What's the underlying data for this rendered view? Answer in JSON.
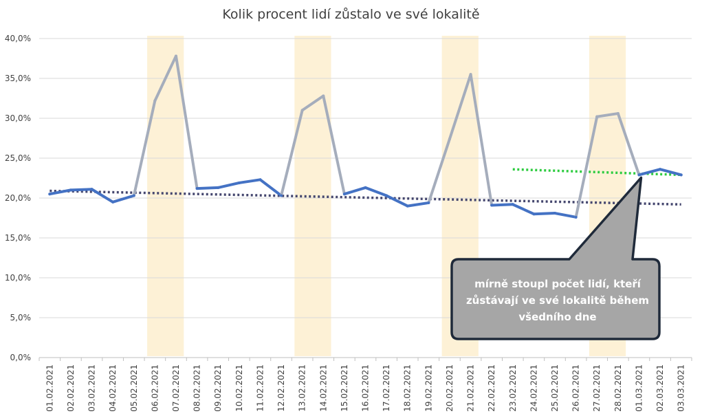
{
  "chart_data": {
    "type": "line",
    "title": "Kolik procent lidí zůstalo ve své lokalitě",
    "ylim": [
      0,
      40
    ],
    "yticks": [
      "0,0%",
      "5,0%",
      "10,0%",
      "15,0%",
      "20,0%",
      "25,0%",
      "30,0%",
      "35,0%",
      "40,0%"
    ],
    "ytick_values": [
      0,
      5,
      10,
      15,
      20,
      25,
      30,
      35,
      40
    ],
    "grid": true,
    "categories": [
      "01.02.2021",
      "02.02.2021",
      "03.02.2021",
      "04.02.2021",
      "05.02.2021",
      "06.02.2021",
      "07.02.2021",
      "08.02.2021",
      "09.02.2021",
      "10.02.2021",
      "11.02.2021",
      "12.02.2021",
      "13.02.2021",
      "14.02.2021",
      "15.02.2021",
      "16.02.2021",
      "17.02.2021",
      "18.02.2021",
      "19.02.2021",
      "20.02.2021",
      "21.02.2021",
      "22.02.2021",
      "23.02.2021",
      "24.02.2021",
      "25.02.2021",
      "26.02.2021",
      "27.02.2021",
      "28.02.2021",
      "01.03.2021",
      "02.03.2021",
      "03.03.2021"
    ],
    "series": [
      {
        "values": [
          20.5,
          21.0,
          21.1,
          19.5,
          20.3,
          32.2,
          37.8,
          21.2,
          21.3,
          21.9,
          22.3,
          20.3,
          31.0,
          32.8,
          20.5,
          21.3,
          20.3,
          19.0,
          19.4,
          27.4,
          35.5,
          19.1,
          19.2,
          18.0,
          18.1,
          17.6,
          30.2,
          30.6,
          22.9,
          23.6,
          22.9
        ],
        "color": "#4472c4",
        "weekend_color": "#a5adbc"
      }
    ],
    "weekend_bands": [
      [
        5,
        6
      ],
      [
        12,
        13
      ],
      [
        19,
        20
      ],
      [
        26,
        27
      ]
    ],
    "band_color": "#fdf1d6",
    "trendlines": [
      {
        "from_index": 0,
        "to_index": 30,
        "start_value": 20.9,
        "end_value": 19.2,
        "color": "#44466e"
      },
      {
        "from_index": 22,
        "to_index": 30,
        "start_value": 23.6,
        "end_value": 22.9,
        "color": "#2ecc40"
      }
    ],
    "annotation": {
      "lines": [
        "mírně stoupl počet lidí, kteří",
        "zůstávají ve své lokalitě během",
        "všedního dne"
      ],
      "fill": "#a6a6a6",
      "border": "#1f2a3a"
    }
  }
}
